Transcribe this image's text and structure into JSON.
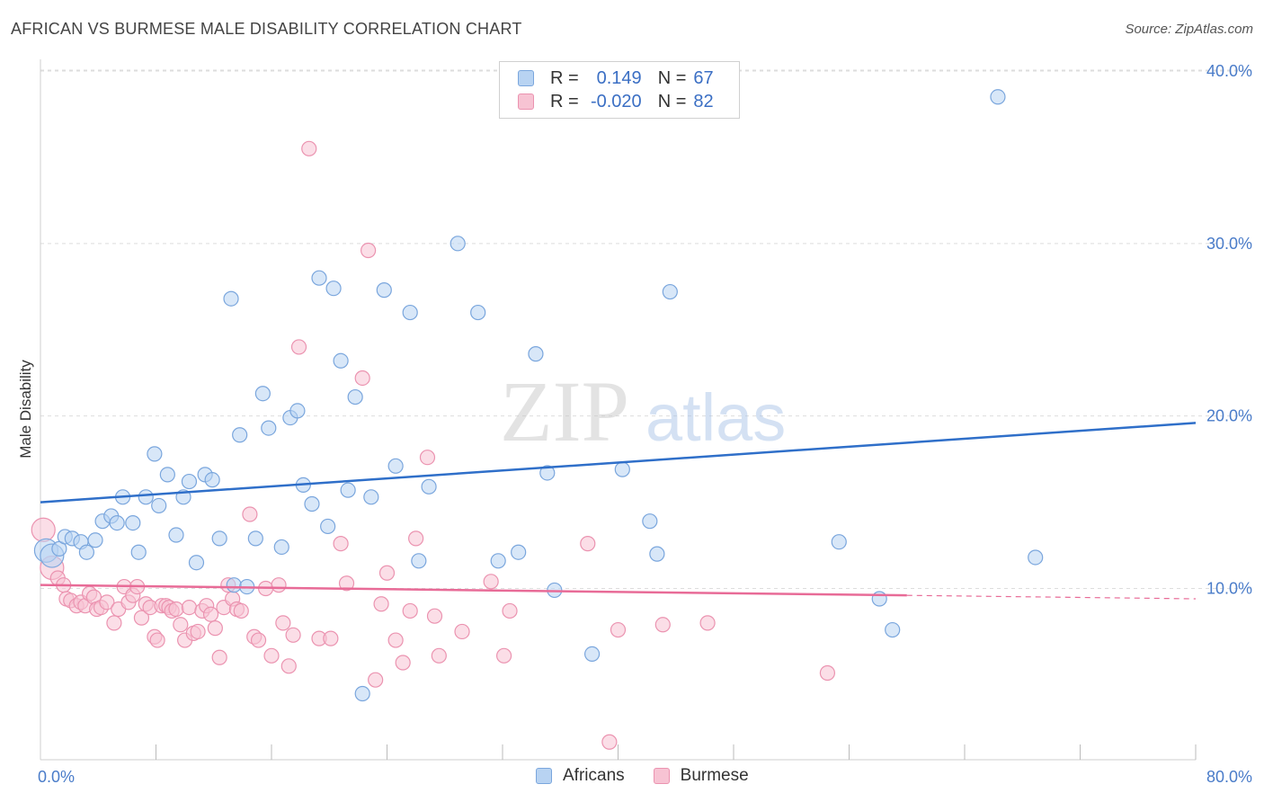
{
  "header": {
    "title": "AFRICAN VS BURMESE MALE DISABILITY CORRELATION CHART",
    "source": "Source: ZipAtlas.com"
  },
  "watermark": {
    "zip": "ZIP",
    "atlas": "atlas"
  },
  "colors": {
    "africans_fill": "#b8d3f2",
    "africans_stroke": "#7aa6dd",
    "africans_line": "#2f6fc9",
    "burmese_fill": "#f7c3d3",
    "burmese_stroke": "#eb93b0",
    "burmese_line": "#e86b97",
    "tick_label": "#4a7cc9",
    "grid": "#dddddd"
  },
  "legend_top": {
    "rows": [
      {
        "r_label": "R =",
        "r_value": "0.149",
        "n_label": "N =",
        "n_value": "67"
      },
      {
        "r_label": "R =",
        "r_value": "-0.020",
        "n_label": "N =",
        "n_value": "82"
      }
    ]
  },
  "legend_bottom": {
    "items": [
      "Africans",
      "Burmese"
    ]
  },
  "chart_data": {
    "type": "scatter",
    "title": "AFRICAN VS BURMESE MALE DISABILITY CORRELATION CHART",
    "ylabel": "Male Disability",
    "xlabel": "",
    "xlim": [
      0,
      80
    ],
    "ylim": [
      0,
      41
    ],
    "x_tick_labels": [
      "0.0%",
      "80.0%"
    ],
    "y_ticks": [
      10,
      20,
      30,
      40
    ],
    "y_tick_labels": [
      "10.0%",
      "20.0%",
      "30.0%",
      "40.0%"
    ],
    "grid": "horizontal dashed",
    "legend_placement": "top-center and bottom-center",
    "series": [
      {
        "name": "Africans",
        "regression": {
          "x": [
            0,
            80
          ],
          "y": [
            15.0,
            19.6
          ]
        },
        "points": [
          [
            0.4,
            12.2
          ],
          [
            0.8,
            11.9
          ],
          [
            1.3,
            12.3
          ],
          [
            1.7,
            13.0
          ],
          [
            2.2,
            12.9
          ],
          [
            2.8,
            12.7
          ],
          [
            3.2,
            12.1
          ],
          [
            3.8,
            12.8
          ],
          [
            4.3,
            13.9
          ],
          [
            4.9,
            14.2
          ],
          [
            5.3,
            13.8
          ],
          [
            5.7,
            15.3
          ],
          [
            6.4,
            13.8
          ],
          [
            6.8,
            12.1
          ],
          [
            7.3,
            15.3
          ],
          [
            7.9,
            17.8
          ],
          [
            8.2,
            14.8
          ],
          [
            8.8,
            16.6
          ],
          [
            9.4,
            13.1
          ],
          [
            9.9,
            15.3
          ],
          [
            10.3,
            16.2
          ],
          [
            10.8,
            11.5
          ],
          [
            11.4,
            16.6
          ],
          [
            11.9,
            16.3
          ],
          [
            12.4,
            12.9
          ],
          [
            13.2,
            26.8
          ],
          [
            13.4,
            10.2
          ],
          [
            13.8,
            18.9
          ],
          [
            14.3,
            10.1
          ],
          [
            14.9,
            12.9
          ],
          [
            15.4,
            21.3
          ],
          [
            15.8,
            19.3
          ],
          [
            16.7,
            12.4
          ],
          [
            17.3,
            19.9
          ],
          [
            17.8,
            20.3
          ],
          [
            18.2,
            16.0
          ],
          [
            18.8,
            14.9
          ],
          [
            19.3,
            28.0
          ],
          [
            19.9,
            13.6
          ],
          [
            20.3,
            27.4
          ],
          [
            20.8,
            23.2
          ],
          [
            21.3,
            15.7
          ],
          [
            21.8,
            21.1
          ],
          [
            22.3,
            3.9
          ],
          [
            22.9,
            15.3
          ],
          [
            23.8,
            27.3
          ],
          [
            24.6,
            17.1
          ],
          [
            25.6,
            26.0
          ],
          [
            26.2,
            11.6
          ],
          [
            26.9,
            15.9
          ],
          [
            28.9,
            30.0
          ],
          [
            30.3,
            26.0
          ],
          [
            31.7,
            11.6
          ],
          [
            33.1,
            12.1
          ],
          [
            34.3,
            23.6
          ],
          [
            35.1,
            16.7
          ],
          [
            35.6,
            9.9
          ],
          [
            38.2,
            6.2
          ],
          [
            40.3,
            16.9
          ],
          [
            42.2,
            13.9
          ],
          [
            42.7,
            12.0
          ],
          [
            43.6,
            27.2
          ],
          [
            55.3,
            12.7
          ],
          [
            58.1,
            9.4
          ],
          [
            59.0,
            7.6
          ],
          [
            66.3,
            38.5
          ],
          [
            68.9,
            11.8
          ]
        ]
      },
      {
        "name": "Burmese",
        "regression": {
          "x": [
            0,
            80
          ],
          "y": [
            10.2,
            9.4
          ]
        },
        "points": [
          [
            0.2,
            13.4
          ],
          [
            0.8,
            11.2
          ],
          [
            1.2,
            10.6
          ],
          [
            1.6,
            10.2
          ],
          [
            1.8,
            9.4
          ],
          [
            2.1,
            9.3
          ],
          [
            2.5,
            9.0
          ],
          [
            2.8,
            9.2
          ],
          [
            3.1,
            9.0
          ],
          [
            3.4,
            9.7
          ],
          [
            3.7,
            9.5
          ],
          [
            3.9,
            8.8
          ],
          [
            4.2,
            8.9
          ],
          [
            4.6,
            9.2
          ],
          [
            5.1,
            8.0
          ],
          [
            5.4,
            8.8
          ],
          [
            5.8,
            10.1
          ],
          [
            6.1,
            9.2
          ],
          [
            6.4,
            9.6
          ],
          [
            6.7,
            10.1
          ],
          [
            7.0,
            8.3
          ],
          [
            7.3,
            9.1
          ],
          [
            7.6,
            8.9
          ],
          [
            7.9,
            7.2
          ],
          [
            8.1,
            7.0
          ],
          [
            8.4,
            9.0
          ],
          [
            8.7,
            9.0
          ],
          [
            8.9,
            8.9
          ],
          [
            9.1,
            8.7
          ],
          [
            9.4,
            8.8
          ],
          [
            9.7,
            7.9
          ],
          [
            10.0,
            7.0
          ],
          [
            10.3,
            8.9
          ],
          [
            10.6,
            7.4
          ],
          [
            10.9,
            7.5
          ],
          [
            11.2,
            8.7
          ],
          [
            11.5,
            9.0
          ],
          [
            11.8,
            8.5
          ],
          [
            12.1,
            7.7
          ],
          [
            12.4,
            6.0
          ],
          [
            12.7,
            8.9
          ],
          [
            13.0,
            10.2
          ],
          [
            13.3,
            9.4
          ],
          [
            13.6,
            8.8
          ],
          [
            13.9,
            8.7
          ],
          [
            14.5,
            14.3
          ],
          [
            14.8,
            7.2
          ],
          [
            15.1,
            7.0
          ],
          [
            15.6,
            10.0
          ],
          [
            16.0,
            6.1
          ],
          [
            16.5,
            10.2
          ],
          [
            16.8,
            8.0
          ],
          [
            17.2,
            5.5
          ],
          [
            17.5,
            7.3
          ],
          [
            17.9,
            24.0
          ],
          [
            18.6,
            35.5
          ],
          [
            19.3,
            7.1
          ],
          [
            20.1,
            7.1
          ],
          [
            20.8,
            12.6
          ],
          [
            21.2,
            10.3
          ],
          [
            22.3,
            22.2
          ],
          [
            22.7,
            29.6
          ],
          [
            23.2,
            4.7
          ],
          [
            23.6,
            9.1
          ],
          [
            24.0,
            10.9
          ],
          [
            24.6,
            7.0
          ],
          [
            25.1,
            5.7
          ],
          [
            25.6,
            8.7
          ],
          [
            26.0,
            12.9
          ],
          [
            26.8,
            17.6
          ],
          [
            27.3,
            8.4
          ],
          [
            27.6,
            6.1
          ],
          [
            29.2,
            7.5
          ],
          [
            31.2,
            10.4
          ],
          [
            32.1,
            6.1
          ],
          [
            32.5,
            8.7
          ],
          [
            37.9,
            12.6
          ],
          [
            39.4,
            1.1
          ],
          [
            40.0,
            7.6
          ],
          [
            43.1,
            7.9
          ],
          [
            46.2,
            8.0
          ],
          [
            54.5,
            5.1
          ]
        ]
      }
    ]
  }
}
